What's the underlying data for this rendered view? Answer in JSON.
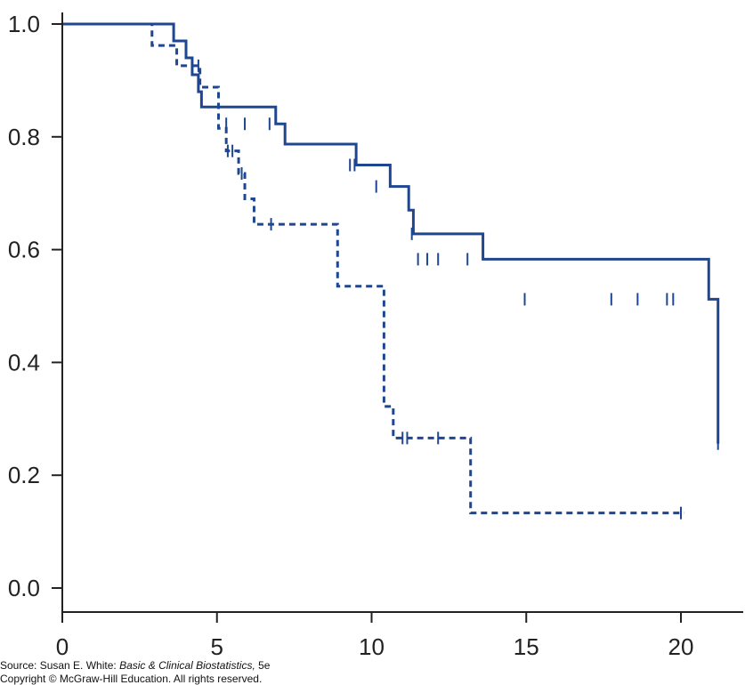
{
  "chart_data": {
    "type": "line",
    "title": "",
    "xlabel": "",
    "ylabel": "",
    "xlim": [
      0,
      22
    ],
    "ylim": [
      -0.04,
      1.04
    ],
    "x_ticks": [
      0,
      5,
      10,
      15,
      20
    ],
    "x_tick_labels": [
      "0",
      "5",
      "10",
      "15",
      "20"
    ],
    "y_ticks": [
      0.0,
      0.2,
      0.4,
      0.6,
      0.8,
      1.0
    ],
    "y_tick_labels": [
      "0.0",
      "0.2",
      "0.4",
      "0.6",
      "0.8",
      "1.0"
    ],
    "grid": false,
    "step": true,
    "colors": {
      "series": "#1f4690",
      "axis": "#222222"
    },
    "series": [
      {
        "style": "solid",
        "x": [
          0,
          3.6,
          4.0,
          4.2,
          4.4,
          4.5,
          6.9,
          7.2,
          9.5,
          10.6,
          11.2,
          11.35,
          13.6,
          20.9,
          21.2
        ],
        "y": [
          1.0,
          0.97,
          0.94,
          0.91,
          0.88,
          0.853,
          0.823,
          0.787,
          0.75,
          0.712,
          0.67,
          0.628,
          0.583,
          0.512,
          0.256
        ],
        "censored": [
          {
            "x": 5.3,
            "y": 0.823
          },
          {
            "x": 5.9,
            "y": 0.823
          },
          {
            "x": 6.7,
            "y": 0.823
          },
          {
            "x": 9.3,
            "y": 0.75
          },
          {
            "x": 9.45,
            "y": 0.75
          },
          {
            "x": 10.15,
            "y": 0.712
          },
          {
            "x": 11.3,
            "y": 0.628
          },
          {
            "x": 11.5,
            "y": 0.583
          },
          {
            "x": 11.8,
            "y": 0.583
          },
          {
            "x": 12.15,
            "y": 0.583
          },
          {
            "x": 13.1,
            "y": 0.583
          },
          {
            "x": 14.95,
            "y": 0.512
          },
          {
            "x": 17.75,
            "y": 0.512
          },
          {
            "x": 18.6,
            "y": 0.512
          },
          {
            "x": 19.55,
            "y": 0.512
          },
          {
            "x": 19.75,
            "y": 0.512
          },
          {
            "x": 21.2,
            "y": 0.256
          }
        ]
      },
      {
        "style": "dashed",
        "x": [
          0,
          2.9,
          3.7,
          4.45,
          5.05,
          5.3,
          5.7,
          5.9,
          6.2,
          8.9,
          10.4,
          10.7,
          13.2,
          20.1
        ],
        "y": [
          1.0,
          0.962,
          0.926,
          0.888,
          0.815,
          0.775,
          0.735,
          0.69,
          0.645,
          0.535,
          0.322,
          0.266,
          0.133,
          0.133
        ],
        "censored": [
          {
            "x": 4.4,
            "y": 0.926
          },
          {
            "x": 5.35,
            "y": 0.775
          },
          {
            "x": 5.5,
            "y": 0.775
          },
          {
            "x": 5.8,
            "y": 0.735
          },
          {
            "x": 6.75,
            "y": 0.645
          },
          {
            "x": 11.0,
            "y": 0.266
          },
          {
            "x": 11.15,
            "y": 0.266
          },
          {
            "x": 12.15,
            "y": 0.266
          },
          {
            "x": 20.0,
            "y": 0.133
          }
        ]
      }
    ]
  },
  "source": {
    "prefix": "Source: Susan E. White: ",
    "book": "Basic & Clinical Biostatistics,",
    "edition": " 5e",
    "copyright": "Copyright © McGraw-Hill Education. All rights reserved."
  }
}
